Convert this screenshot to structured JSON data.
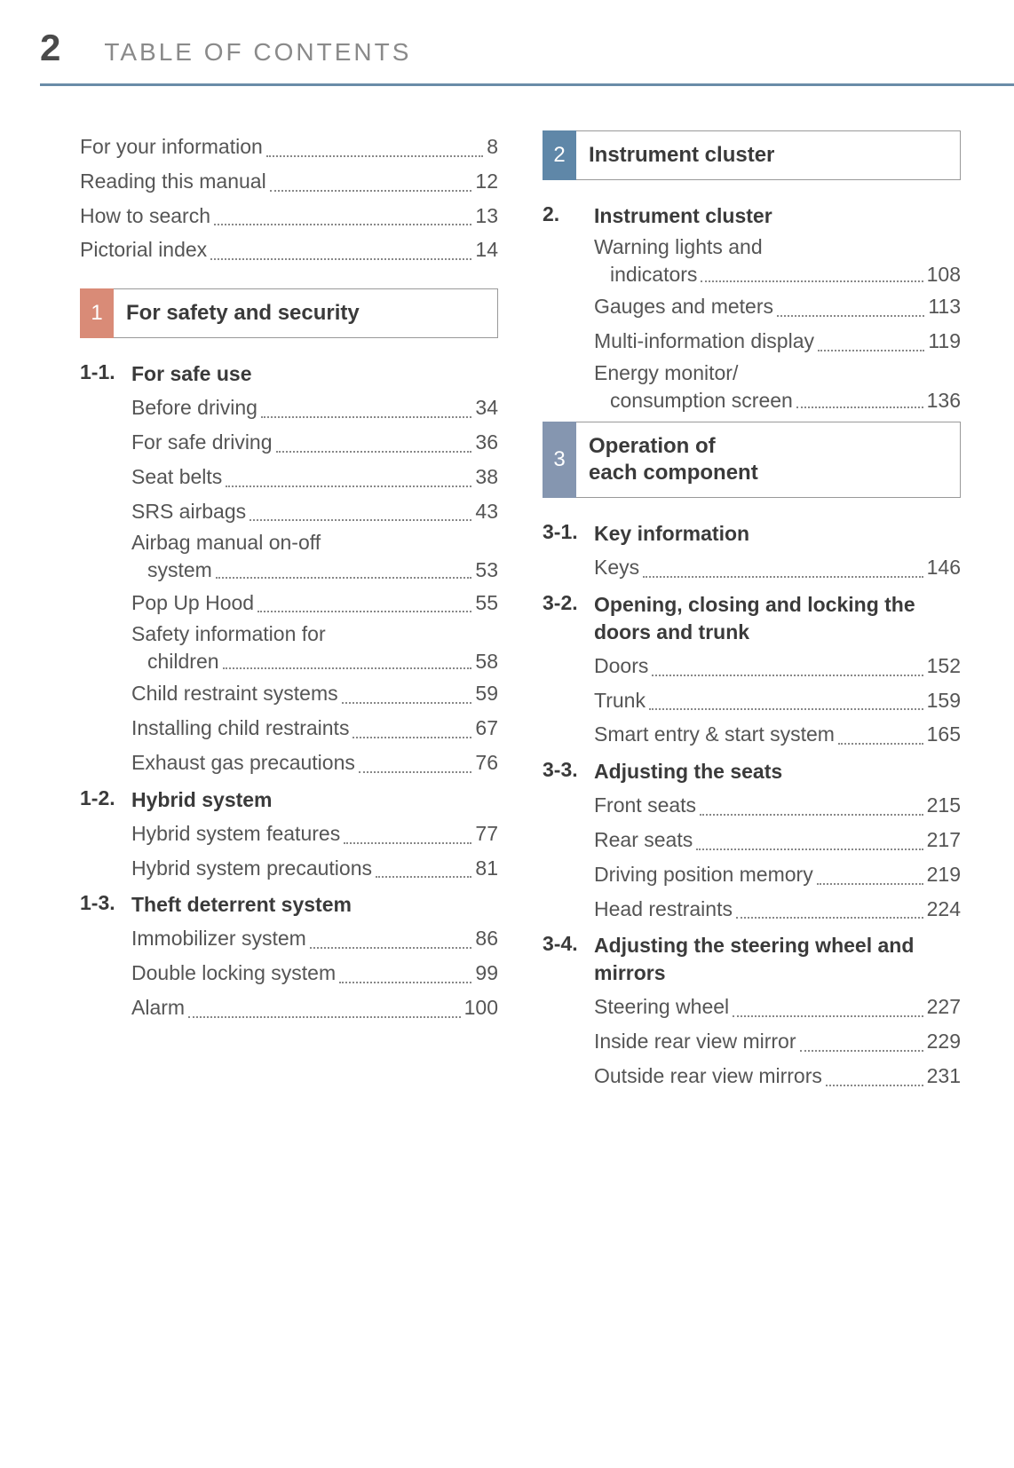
{
  "header": {
    "page_number": "2",
    "title": "TABLE OF CONTENTS",
    "rule_color": "#6a8ca8"
  },
  "intro_entries": [
    {
      "label": "For your information",
      "page": "8"
    },
    {
      "label": "Reading this manual",
      "page": "12"
    },
    {
      "label": "How to search",
      "page": "13"
    },
    {
      "label": "Pictorial index",
      "page": "14"
    }
  ],
  "sections": [
    {
      "num": "1",
      "color": "#d98b77",
      "title": "For safety and security",
      "subsections": [
        {
          "num": "1-1.",
          "title": "For safe use",
          "items": [
            {
              "label": "Before driving",
              "page": "34"
            },
            {
              "label": "For safe driving",
              "page": "36"
            },
            {
              "label": "Seat belts",
              "page": "38"
            },
            {
              "label": "SRS airbags",
              "page": "43"
            },
            {
              "label": "Airbag manual on-off",
              "label2": "system",
              "page": "53"
            },
            {
              "label": "Pop Up Hood",
              "page": "55"
            },
            {
              "label": "Safety information for",
              "label2": "children",
              "page": "58"
            },
            {
              "label": "Child restraint systems",
              "page": "59"
            },
            {
              "label": "Installing child restraints",
              "page": "67"
            },
            {
              "label": "Exhaust gas precautions",
              "page": "76"
            }
          ]
        },
        {
          "num": "1-2.",
          "title": "Hybrid system",
          "items": [
            {
              "label": "Hybrid system features",
              "page": "77"
            },
            {
              "label": "Hybrid system precautions",
              "page": "81"
            }
          ]
        },
        {
          "num": "1-3.",
          "title": "Theft deterrent system",
          "items": [
            {
              "label": "Immobilizer system",
              "page": "86"
            },
            {
              "label": "Double locking system",
              "page": "99"
            },
            {
              "label": "Alarm",
              "page": "100"
            }
          ]
        }
      ]
    },
    {
      "num": "2",
      "color": "#5f87a8",
      "title": "Instrument cluster",
      "subsections": [
        {
          "num": "2.",
          "title": "Instrument cluster",
          "items": [
            {
              "label": "Warning lights and",
              "label2": "indicators",
              "page": "108"
            },
            {
              "label": "Gauges and meters",
              "page": "113"
            },
            {
              "label": "Multi-information display",
              "page": "119"
            },
            {
              "label": "Energy monitor/",
              "label2": "consumption screen",
              "page": "136"
            }
          ]
        }
      ]
    },
    {
      "num": "3",
      "color": "#8596b0",
      "title": "Operation of each component",
      "title_line1": "Operation of",
      "title_line2": "each component",
      "subsections": [
        {
          "num": "3-1.",
          "title": "Key information",
          "items": [
            {
              "label": "Keys",
              "page": "146"
            }
          ]
        },
        {
          "num": "3-2.",
          "title": "Opening, closing and locking the doors and trunk",
          "items": [
            {
              "label": "Doors",
              "page": "152"
            },
            {
              "label": "Trunk",
              "page": "159"
            },
            {
              "label": "Smart entry & start system",
              "page": "165"
            }
          ]
        },
        {
          "num": "3-3.",
          "title": "Adjusting the seats",
          "items": [
            {
              "label": "Front seats",
              "page": "215"
            },
            {
              "label": "Rear seats",
              "page": "217"
            },
            {
              "label": "Driving position memory",
              "page": "219"
            },
            {
              "label": "Head restraints",
              "page": "224"
            }
          ]
        },
        {
          "num": "3-4.",
          "title": "Adjusting the steering wheel and mirrors",
          "items": [
            {
              "label": "Steering wheel",
              "page": "227"
            },
            {
              "label": "Inside rear view mirror",
              "page": "229"
            },
            {
              "label": "Outside rear view mirrors",
              "page": "231"
            }
          ]
        }
      ]
    }
  ]
}
